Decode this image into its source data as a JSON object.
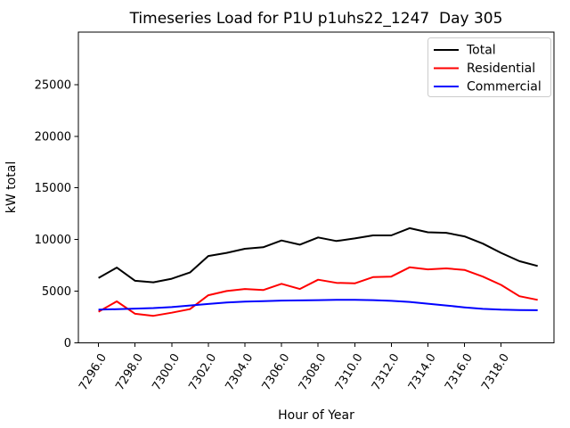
{
  "figure": {
    "background": "#ffffff"
  },
  "chart_data": {
    "type": "line",
    "title": "Timeseries Load for P1U p1uhs22_1247  Day 305",
    "xlabel": "Hour of Year",
    "ylabel": "kW total",
    "xlim": [
      7294.9,
      7320.89
    ],
    "ylim": [
      0,
      30100
    ],
    "grid": false,
    "x_ticks": [
      7296,
      7298,
      7300,
      7302,
      7304,
      7306,
      7308,
      7310,
      7312,
      7314,
      7316,
      7318
    ],
    "x_tick_decimals": 1,
    "x_tick_rotation": -58,
    "y_ticks": [
      0,
      5000,
      10000,
      15000,
      20000,
      25000
    ],
    "x": [
      7296,
      7297,
      7298,
      7299,
      7300,
      7301,
      7302,
      7303,
      7304,
      7305,
      7306,
      7307,
      7308,
      7309,
      7310,
      7311,
      7312,
      7313,
      7314,
      7315,
      7316,
      7317,
      7318,
      7319,
      7320
    ],
    "series": [
      {
        "name": "Total",
        "color": "#000000",
        "values": [
          6270,
          7280,
          6000,
          5850,
          6200,
          6800,
          8400,
          8700,
          9100,
          9250,
          9900,
          9500,
          10200,
          9850,
          10100,
          10400,
          10400,
          11100,
          10700,
          10650,
          10300,
          9600,
          8700,
          7900,
          7430
        ]
      },
      {
        "name": "Residential",
        "color": "#ff0000",
        "values": [
          3000,
          4000,
          2800,
          2600,
          2900,
          3250,
          4600,
          5000,
          5200,
          5100,
          5700,
          5200,
          6100,
          5800,
          5750,
          6350,
          6400,
          7300,
          7100,
          7200,
          7050,
          6400,
          5600,
          4500,
          4150
        ]
      },
      {
        "name": "Commercial",
        "color": "#0000ff",
        "values": [
          3200,
          3250,
          3300,
          3350,
          3450,
          3600,
          3750,
          3900,
          3975,
          4025,
          4075,
          4100,
          4125,
          4150,
          4150,
          4125,
          4050,
          3950,
          3775,
          3600,
          3425,
          3275,
          3200,
          3160,
          3150
        ]
      }
    ],
    "legend": {
      "position": "upper right",
      "entries": [
        {
          "label": "Total",
          "color": "#000000"
        },
        {
          "label": "Residential",
          "color": "#ff0000"
        },
        {
          "label": "Commercial",
          "color": "#0000ff"
        }
      ]
    }
  }
}
